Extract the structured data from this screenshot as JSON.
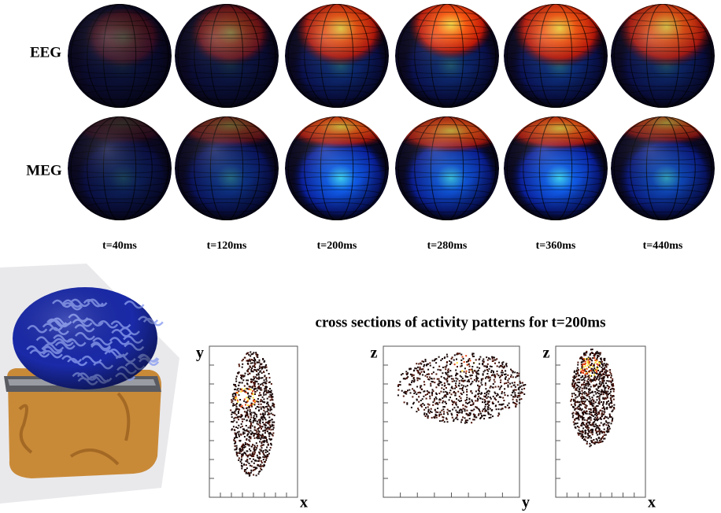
{
  "rows": [
    {
      "label": "EEG"
    },
    {
      "label": "MEG"
    }
  ],
  "times": [
    "t=40ms",
    "t=120ms",
    "t=200ms",
    "t=280ms",
    "t=360ms",
    "t=440ms"
  ],
  "cross_sections": {
    "title": "cross sections of activity patterns for t=200ms",
    "panels": [
      {
        "y_label": "y",
        "x_label": "x"
      },
      {
        "y_label": "z",
        "x_label": "y"
      },
      {
        "y_label": "z",
        "x_label": "x"
      }
    ]
  }
}
